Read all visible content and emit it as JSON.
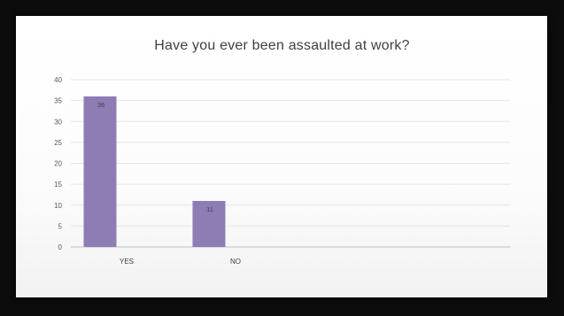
{
  "chart_data": {
    "type": "bar",
    "title": "Have you ever been assaulted at work?",
    "categories": [
      "YES",
      "NO"
    ],
    "values": [
      36,
      11
    ],
    "data_labels": [
      "36",
      "11"
    ],
    "ylim": [
      0,
      40
    ],
    "yticks": [
      "0",
      "5",
      "10",
      "15",
      "20",
      "25",
      "30",
      "35",
      "40"
    ],
    "grid": true,
    "bar_color": "#8e7cb4",
    "xlabel": "",
    "ylabel": ""
  }
}
